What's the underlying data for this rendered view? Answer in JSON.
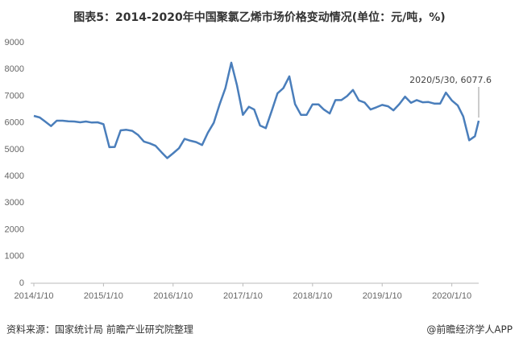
{
  "chart_data": {
    "type": "line",
    "title": "图表5：2014-2020年中国聚氯乙烯市场价格变动情况(单位：元/吨，%)",
    "x": [
      "2014/1/10",
      "2014/2/10",
      "2014/3/10",
      "2014/4/10",
      "2014/5/10",
      "2014/6/10",
      "2014/7/10",
      "2014/8/10",
      "2014/9/10",
      "2014/10/10",
      "2014/11/10",
      "2014/12/10",
      "2015/1/10",
      "2015/2/10",
      "2015/3/10",
      "2015/4/10",
      "2015/5/10",
      "2015/6/10",
      "2015/7/10",
      "2015/8/10",
      "2015/9/10",
      "2015/10/10",
      "2015/11/10",
      "2015/12/10",
      "2016/1/10",
      "2016/2/10",
      "2016/3/10",
      "2016/4/10",
      "2016/5/10",
      "2016/6/10",
      "2016/7/10",
      "2016/8/10",
      "2016/9/10",
      "2016/10/10",
      "2016/11/10",
      "2016/12/10",
      "2017/1/10",
      "2017/2/10",
      "2017/3/10",
      "2017/4/10",
      "2017/5/10",
      "2017/6/10",
      "2017/7/10",
      "2017/8/10",
      "2017/9/10",
      "2017/10/10",
      "2017/11/10",
      "2017/12/10",
      "2018/1/10",
      "2018/2/10",
      "2018/3/10",
      "2018/4/10",
      "2018/5/10",
      "2018/6/10",
      "2018/7/10",
      "2018/8/10",
      "2018/9/10",
      "2018/10/10",
      "2018/11/10",
      "2018/12/10",
      "2019/1/10",
      "2019/2/10",
      "2019/3/10",
      "2019/4/10",
      "2019/5/10",
      "2019/6/10",
      "2019/7/10",
      "2019/8/10",
      "2019/9/10",
      "2019/10/10",
      "2019/11/10",
      "2019/12/10",
      "2020/1/10",
      "2020/2/10",
      "2020/3/10",
      "2020/4/10",
      "2020/5/10",
      "2020/5/30"
    ],
    "values": [
      6260,
      6200,
      6050,
      5880,
      6080,
      6080,
      6060,
      6050,
      6020,
      6050,
      6010,
      6020,
      5950,
      5090,
      5100,
      5720,
      5740,
      5700,
      5550,
      5300,
      5230,
      5140,
      4900,
      4680,
      4860,
      5050,
      5400,
      5330,
      5280,
      5170,
      5630,
      6000,
      6700,
      7300,
      8250,
      7400,
      6300,
      6600,
      6500,
      5900,
      5800,
      6450,
      7100,
      7300,
      7740,
      6700,
      6300,
      6300,
      6690,
      6690,
      6500,
      6350,
      6850,
      6850,
      7000,
      7230,
      6840,
      6760,
      6500,
      6580,
      6670,
      6620,
      6470,
      6700,
      6980,
      6750,
      6850,
      6770,
      6780,
      6720,
      6720,
      7130,
      6840,
      6650,
      6240,
      5350,
      5500,
      6077.6
    ],
    "color": "#4a7ebb",
    "xlim": [
      "2014/1/10",
      "2020/5/30"
    ],
    "xticks": [
      "2014/1/10",
      "2015/1/10",
      "2016/1/10",
      "2017/1/10",
      "2018/1/10",
      "2019/1/10",
      "2020/1/10"
    ],
    "ylim": [
      0,
      9000
    ],
    "yticks": [
      0,
      1000,
      2000,
      3000,
      4000,
      5000,
      6000,
      7000,
      8000,
      9000
    ],
    "annotation": "2020/5/30, 6077.6",
    "source": "资料来源：国家统计局 前瞻产业研究院整理",
    "credit": "@前瞻经济学人APP"
  }
}
